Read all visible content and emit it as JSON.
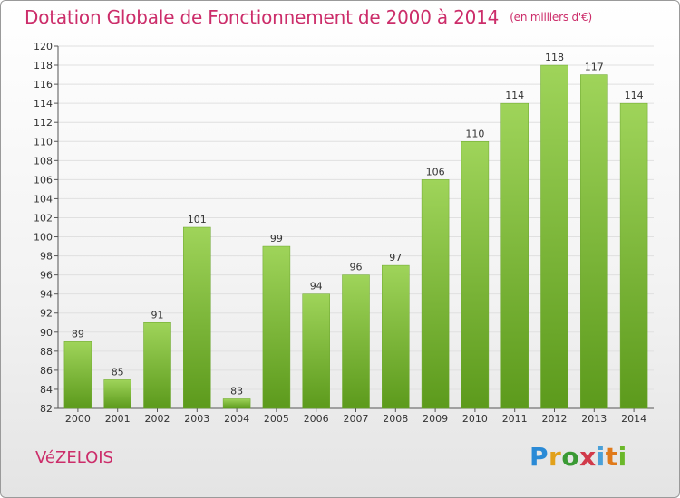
{
  "chart_data": {
    "type": "bar",
    "title": "Dotation Globale de Fonctionnement de 2000 à 2014",
    "unit_note": "(en milliers d'€)",
    "categories": [
      "2000",
      "2001",
      "2002",
      "2003",
      "2004",
      "2005",
      "2006",
      "2007",
      "2008",
      "2009",
      "2010",
      "2011",
      "2012",
      "2013",
      "2014"
    ],
    "values": [
      89,
      85,
      91,
      101,
      83,
      99,
      94,
      96,
      97,
      106,
      110,
      114,
      118,
      117,
      114
    ],
    "value_labels": [
      "89",
      "85",
      "91",
      "101",
      "83",
      "99",
      "94",
      "96",
      "97",
      "106",
      "110",
      "114",
      "118",
      "117",
      "114"
    ],
    "ylim": [
      82,
      120
    ],
    "yticks": [
      82,
      84,
      86,
      88,
      90,
      92,
      94,
      96,
      98,
      100,
      102,
      104,
      106,
      108,
      110,
      112,
      114,
      116,
      118,
      120
    ],
    "grid": true,
    "bar_color": "#8cc63f",
    "bar_color_dark": "#5c9a1c",
    "grid_color": "#e0e0e0"
  },
  "footer": {
    "commune": "VéZELOIS",
    "logo": [
      "P",
      "r",
      "o",
      "x",
      "i",
      "t",
      "i"
    ]
  }
}
